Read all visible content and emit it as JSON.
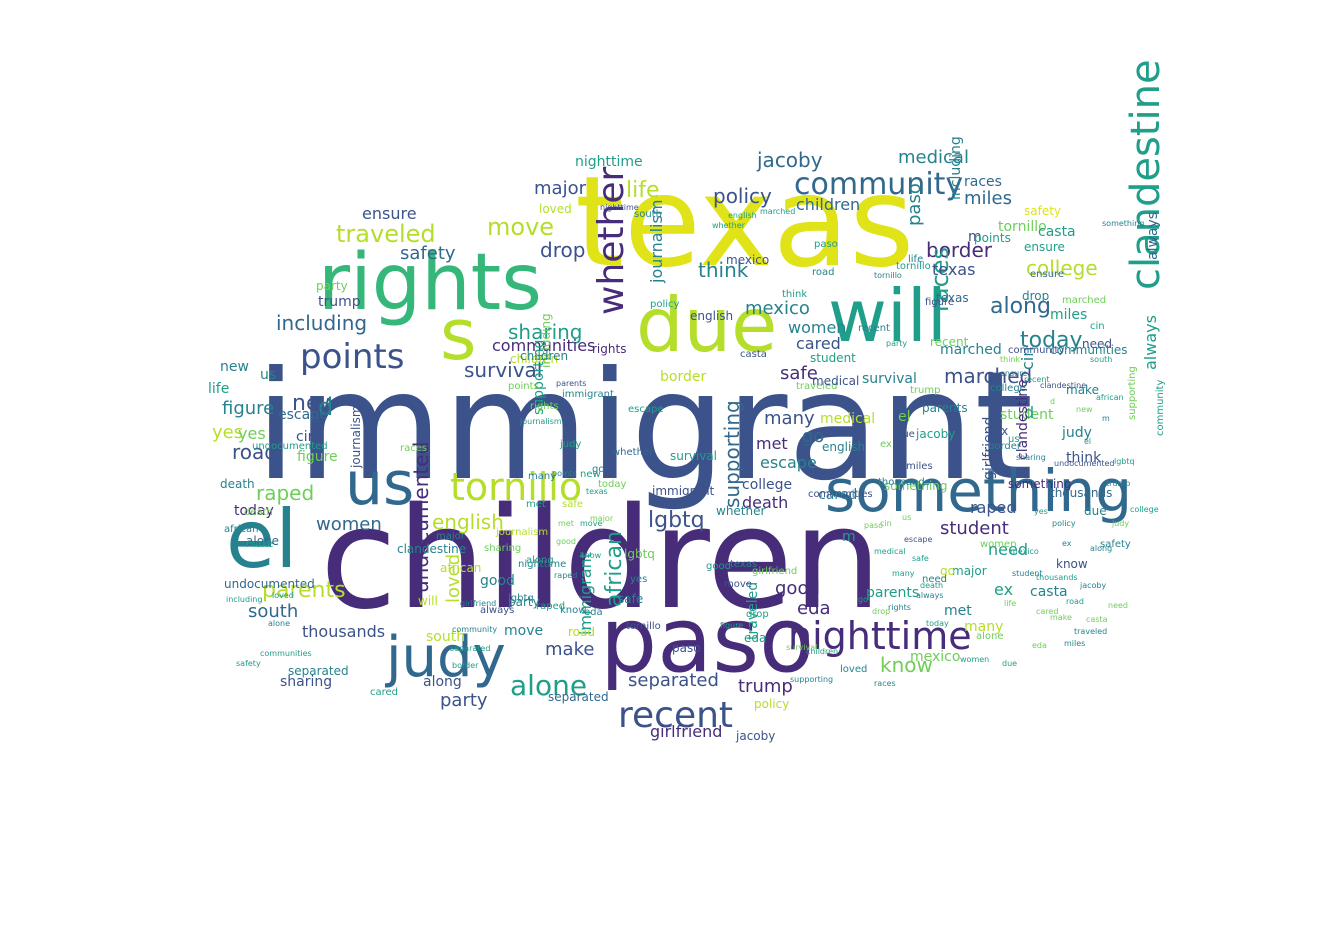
{
  "palette": {
    "dark_purple": "#472c7a",
    "indigo": "#3b528b",
    "blue": "#31688e",
    "teal": "#26828e",
    "green": "#1f9e89",
    "light_green": "#35b779",
    "lime": "#6ece58",
    "yellow_green": "#b5de2b",
    "yellow": "#dfe318",
    "deep_purple": "#440154"
  },
  "words": [
    {
      "text": "immigrant",
      "color": "indigo"
    },
    {
      "text": "children",
      "color": "dark_purple"
    },
    {
      "text": "texas",
      "color": "yellow"
    },
    {
      "text": "rights",
      "color": "light_green"
    },
    {
      "text": "will",
      "color": "green"
    },
    {
      "text": "due",
      "color": "yellow_green"
    },
    {
      "text": "paso",
      "color": "dark_purple"
    },
    {
      "text": "el",
      "color": "teal"
    },
    {
      "text": "something",
      "color": "blue"
    },
    {
      "text": "us",
      "color": "blue"
    },
    {
      "text": "judy",
      "color": "blue"
    },
    {
      "text": "tornillo",
      "color": "yellow_green"
    },
    {
      "text": "nighttime",
      "color": "dark_purple"
    },
    {
      "text": "clandestine",
      "color": "green"
    },
    {
      "text": "points",
      "color": "indigo"
    },
    {
      "text": "community",
      "color": "blue"
    },
    {
      "text": "recent",
      "color": "indigo"
    },
    {
      "text": "alone",
      "color": "green"
    },
    {
      "text": "traveled",
      "color": "yellow_green"
    },
    {
      "text": "move",
      "color": "yellow_green"
    },
    {
      "text": "including",
      "color": "blue"
    },
    {
      "text": "whether",
      "color": "dark_purple"
    },
    {
      "text": "s",
      "color": "yellow_green"
    },
    {
      "text": "safety",
      "color": "blue"
    },
    {
      "text": "drop",
      "color": "indigo"
    },
    {
      "text": "life",
      "color": "yellow_green"
    },
    {
      "text": "major",
      "color": "indigo"
    },
    {
      "text": "jacoby",
      "color": "blue"
    },
    {
      "text": "medical",
      "color": "teal"
    },
    {
      "text": "policy",
      "color": "indigo"
    },
    {
      "text": "children",
      "color": "blue"
    },
    {
      "text": "miles",
      "color": "blue"
    },
    {
      "text": "border",
      "color": "dark_purple"
    },
    {
      "text": "college",
      "color": "yellow_green"
    },
    {
      "text": "along",
      "color": "blue"
    },
    {
      "text": "today",
      "color": "teal"
    },
    {
      "text": "marched",
      "color": "indigo"
    },
    {
      "text": "races",
      "color": "green"
    },
    {
      "text": "think",
      "color": "teal"
    },
    {
      "text": "mexico",
      "color": "teal"
    },
    {
      "text": "women",
      "color": "teal"
    },
    {
      "text": "cared",
      "color": "indigo"
    },
    {
      "text": "safe",
      "color": "dark_purple"
    },
    {
      "text": "survival",
      "color": "indigo"
    },
    {
      "text": "sharing",
      "color": "green"
    },
    {
      "text": "communities",
      "color": "dark_purple"
    },
    {
      "text": "new",
      "color": "indigo"
    },
    {
      "text": "figure",
      "color": "teal"
    },
    {
      "text": "d",
      "color": "teal"
    },
    {
      "text": "raped",
      "color": "lime"
    },
    {
      "text": "english",
      "color": "yellow_green"
    },
    {
      "text": "lgbtq",
      "color": "indigo"
    },
    {
      "text": "women",
      "color": "blue"
    },
    {
      "text": "yes",
      "color": "yellow_green"
    },
    {
      "text": "road",
      "color": "indigo"
    },
    {
      "text": "parents",
      "color": "yellow_green"
    },
    {
      "text": "south",
      "color": "blue"
    },
    {
      "text": "thousands",
      "color": "indigo"
    },
    {
      "text": "party",
      "color": "indigo"
    },
    {
      "text": "separated",
      "color": "indigo"
    },
    {
      "text": "trump",
      "color": "dark_purple"
    },
    {
      "text": "girlfriend",
      "color": "dark_purple"
    },
    {
      "text": "make",
      "color": "indigo"
    },
    {
      "text": "eda",
      "color": "dark_purple"
    },
    {
      "text": "good",
      "color": "dark_purple"
    },
    {
      "text": "know",
      "color": "lime"
    },
    {
      "text": "escape",
      "color": "teal"
    },
    {
      "text": "death",
      "color": "dark_purple"
    },
    {
      "text": "met",
      "color": "dark_purple"
    },
    {
      "text": "many",
      "color": "indigo"
    },
    {
      "text": "go",
      "color": "blue"
    },
    {
      "text": "student",
      "color": "dark_purple"
    },
    {
      "text": "need",
      "color": "green"
    },
    {
      "text": "ex",
      "color": "green"
    },
    {
      "text": "casta",
      "color": "teal"
    },
    {
      "text": "always",
      "color": "green"
    },
    {
      "text": "supporting",
      "color": "blue"
    },
    {
      "text": "african",
      "color": "green"
    },
    {
      "text": "undocumented",
      "color": "dark_purple"
    },
    {
      "text": "journalism",
      "color": "teal"
    },
    {
      "text": "loved",
      "color": "yellow_green"
    },
    {
      "text": "immigrant",
      "color": "green"
    },
    {
      "text": "cin",
      "color": "teal"
    },
    {
      "text": "ensure",
      "color": "indigo"
    },
    {
      "text": "texas",
      "color": "indigo"
    },
    {
      "text": "paso",
      "color": "teal"
    },
    {
      "text": "tornillo",
      "color": "lime"
    },
    {
      "text": "races",
      "color": "blue"
    },
    {
      "text": "el",
      "color": "lime"
    },
    {
      "text": "girlfriend",
      "color": "indigo"
    },
    {
      "text": "m",
      "color": "indigo"
    },
    {
      "text": "including",
      "color": "teal"
    },
    {
      "text": "loved",
      "color": "yellow_green"
    },
    {
      "text": "always",
      "color": "blue"
    },
    {
      "text": "new",
      "color": "teal"
    },
    {
      "text": "need",
      "color": "indigo"
    },
    {
      "text": "yes",
      "color": "lime"
    },
    {
      "text": "escape",
      "color": "blue"
    },
    {
      "text": "mexico",
      "color": "lime"
    },
    {
      "text": "figure",
      "color": "lime"
    },
    {
      "text": "sharing",
      "color": "indigo"
    },
    {
      "text": "survival",
      "color": "teal"
    },
    {
      "text": "trump",
      "color": "indigo"
    },
    {
      "text": "make",
      "color": "teal"
    },
    {
      "text": "think",
      "color": "indigo"
    },
    {
      "text": "party",
      "color": "lime"
    },
    {
      "text": "policy",
      "color": "yellow_green"
    },
    {
      "text": "jacoby",
      "color": "indigo"
    },
    {
      "text": "communities",
      "color": "teal"
    },
    {
      "text": "road",
      "color": "yellow_green"
    },
    {
      "text": "separated",
      "color": "teal"
    },
    {
      "text": "student",
      "color": "lime"
    },
    {
      "text": "thousands",
      "color": "blue"
    },
    {
      "text": "death",
      "color": "teal"
    },
    {
      "text": "african",
      "color": "yellow_green"
    },
    {
      "text": "undocumented",
      "color": "blue"
    },
    {
      "text": "journalism",
      "color": "indigo"
    },
    {
      "text": "ensure",
      "color": "green"
    },
    {
      "text": "marched",
      "color": "teal"
    },
    {
      "text": "medical",
      "color": "yellow_green"
    },
    {
      "text": "miles",
      "color": "green"
    },
    {
      "text": "safety",
      "color": "yellow"
    },
    {
      "text": "today",
      "color": "dark_purple"
    },
    {
      "text": "along",
      "color": "indigo"
    },
    {
      "text": "casta",
      "color": "green"
    },
    {
      "text": "cared",
      "color": "teal"
    },
    {
      "text": "college",
      "color": "indigo"
    },
    {
      "text": "points",
      "color": "green"
    },
    {
      "text": "parents",
      "color": "green"
    },
    {
      "text": "south",
      "color": "yellow_green"
    },
    {
      "text": "good",
      "color": "teal"
    },
    {
      "text": "know",
      "color": "indigo"
    },
    {
      "text": "eda",
      "color": "green"
    },
    {
      "text": "life",
      "color": "green"
    },
    {
      "text": "major",
      "color": "green"
    },
    {
      "text": "drop",
      "color": "teal"
    },
    {
      "text": "recent",
      "color": "lime"
    },
    {
      "text": "alone",
      "color": "blue"
    },
    {
      "text": "move",
      "color": "teal"
    },
    {
      "text": "us",
      "color": "teal"
    },
    {
      "text": "cin",
      "color": "indigo"
    },
    {
      "text": "go",
      "color": "yellow_green"
    },
    {
      "text": "ex",
      "color": "indigo"
    },
    {
      "text": "d",
      "color": "green"
    },
    {
      "text": "m",
      "color": "green"
    },
    {
      "text": "whether",
      "color": "teal"
    },
    {
      "text": "supporting",
      "color": "green"
    },
    {
      "text": "lgbtq",
      "color": "lime"
    },
    {
      "text": "many",
      "color": "yellow_green"
    },
    {
      "text": "met",
      "color": "teal"
    },
    {
      "text": "raped",
      "color": "indigo"
    },
    {
      "text": "border",
      "color": "yellow_green"
    },
    {
      "text": "english",
      "color": "indigo"
    },
    {
      "text": "rights",
      "color": "dark_purple"
    },
    {
      "text": "judy",
      "color": "teal"
    },
    {
      "text": "nighttime",
      "color": "green"
    },
    {
      "text": "community",
      "color": "indigo"
    },
    {
      "text": "clandestine",
      "color": "dark_purple"
    },
    {
      "text": "traveled",
      "color": "green"
    },
    {
      "text": "due",
      "color": "teal"
    },
    {
      "text": "will",
      "color": "yellow_green"
    },
    {
      "text": "something",
      "color": "lime"
    },
    {
      "text": "texas",
      "color": "blue"
    },
    {
      "text": "paso",
      "color": "indigo"
    },
    {
      "text": "children",
      "color": "yellow_green"
    },
    {
      "text": "immigrant",
      "color": "indigo"
    },
    {
      "text": "tornillo",
      "color": "indigo"
    },
    {
      "text": "safe",
      "color": "teal"
    },
    {
      "text": "separated",
      "color": "blue"
    },
    {
      "text": "nighttime",
      "color": "teal"
    },
    {
      "text": "girlfriend",
      "color": "lime"
    },
    {
      "text": "undocumented",
      "color": "green"
    },
    {
      "text": "thousands",
      "color": "teal"
    },
    {
      "text": "communities",
      "color": "indigo"
    },
    {
      "text": "clandestine",
      "color": "teal"
    },
    {
      "text": "journalism",
      "color": "yellow_green"
    },
    {
      "text": "supporting",
      "color": "lime"
    },
    {
      "text": "something",
      "color": "dark_purple"
    },
    {
      "text": "community",
      "color": "green"
    },
    {
      "text": "including",
      "color": "lime"
    },
    {
      "text": "whether",
      "color": "blue"
    },
    {
      "text": "traveled",
      "color": "lime"
    },
    {
      "text": "marched",
      "color": "lime"
    },
    {
      "text": "medical",
      "color": "indigo"
    },
    {
      "text": "african",
      "color": "teal"
    },
    {
      "text": "english",
      "color": "teal"
    },
    {
      "text": "student",
      "color": "green"
    },
    {
      "text": "parents",
      "color": "teal"
    },
    {
      "text": "sharing",
      "color": "lime"
    },
    {
      "text": "survival",
      "color": "green"
    },
    {
      "text": "tornillo",
      "color": "green"
    },
    {
      "text": "children",
      "color": "teal"
    },
    {
      "text": "escape",
      "color": "green"
    },
    {
      "text": "mexico",
      "color": "indigo"
    },
    {
      "text": "jacoby",
      "color": "green"
    },
    {
      "text": "college",
      "color": "teal"
    },
    {
      "text": "ensure",
      "color": "blue"
    },
    {
      "text": "border",
      "color": "teal"
    },
    {
      "text": "recent",
      "color": "teal"
    },
    {
      "text": "figure",
      "color": "indigo"
    },
    {
      "text": "policy",
      "color": "green"
    },
    {
      "text": "points",
      "color": "lime"
    },
    {
      "text": "always",
      "color": "indigo"
    },
    {
      "text": "rights",
      "color": "lime"
    },
    {
      "text": "raped",
      "color": "green"
    },
    {
      "text": "women",
      "color": "lime"
    },
    {
      "text": "party",
      "color": "teal"
    },
    {
      "text": "trump",
      "color": "lime"
    },
    {
      "text": "alone",
      "color": "lime"
    },
    {
      "text": "death",
      "color": "lime"
    },
    {
      "text": "south",
      "color": "teal"
    },
    {
      "text": "cared",
      "color": "green"
    },
    {
      "text": "today",
      "color": "lime"
    },
    {
      "text": "along",
      "color": "green"
    },
    {
      "text": "major",
      "color": "teal"
    },
    {
      "text": "miles",
      "color": "indigo"
    },
    {
      "text": "lgbtq",
      "color": "teal"
    },
    {
      "text": "texas",
      "color": "teal"
    },
    {
      "text": "races",
      "color": "lime"
    },
    {
      "text": "think",
      "color": "green"
    },
    {
      "text": "casta",
      "color": "indigo"
    },
    {
      "text": "safety",
      "color": "teal"
    },
    {
      "text": "loved",
      "color": "teal"
    },
    {
      "text": "move",
      "color": "indigo"
    },
    {
      "text": "make",
      "color": "green"
    },
    {
      "text": "need",
      "color": "teal"
    },
    {
      "text": "drop",
      "color": "green"
    },
    {
      "text": "judy",
      "color": "green"
    },
    {
      "text": "road",
      "color": "teal"
    },
    {
      "text": "good",
      "color": "green"
    },
    {
      "text": "know",
      "color": "teal"
    },
    {
      "text": "life",
      "color": "teal"
    },
    {
      "text": "many",
      "color": "teal"
    },
    {
      "text": "paso",
      "color": "green"
    },
    {
      "text": "safe",
      "color": "yellow_green"
    },
    {
      "text": "yes",
      "color": "teal"
    },
    {
      "text": "new",
      "color": "green"
    },
    {
      "text": "eda",
      "color": "teal"
    },
    {
      "text": "met",
      "color": "green"
    },
    {
      "text": "due",
      "color": "indigo"
    },
    {
      "text": "us",
      "color": "green"
    },
    {
      "text": "go",
      "color": "teal"
    },
    {
      "text": "el",
      "color": "indigo"
    },
    {
      "text": "ex",
      "color": "lime"
    },
    {
      "text": "cin",
      "color": "green"
    },
    {
      "text": "immigrant",
      "color": "teal"
    },
    {
      "text": "undocumented",
      "color": "indigo"
    },
    {
      "text": "clandestine",
      "color": "indigo"
    },
    {
      "text": "communities",
      "color": "green"
    },
    {
      "text": "something",
      "color": "teal"
    },
    {
      "text": "nighttime",
      "color": "indigo"
    },
    {
      "text": "journalism",
      "color": "green"
    },
    {
      "text": "supporting",
      "color": "teal"
    },
    {
      "text": "separated",
      "color": "green"
    },
    {
      "text": "thousands",
      "color": "green"
    },
    {
      "text": "community",
      "color": "teal"
    },
    {
      "text": "girlfriend",
      "color": "teal"
    },
    {
      "text": "including",
      "color": "green"
    },
    {
      "text": "children",
      "color": "green"
    },
    {
      "text": "traveled",
      "color": "teal"
    },
    {
      "text": "whether",
      "color": "green"
    },
    {
      "text": "tornillo",
      "color": "teal"
    },
    {
      "text": "student",
      "color": "teal"
    },
    {
      "text": "medical",
      "color": "green"
    },
    {
      "text": "marched",
      "color": "green"
    },
    {
      "text": "english",
      "color": "green"
    },
    {
      "text": "african",
      "color": "green"
    },
    {
      "text": "sharing",
      "color": "teal"
    },
    {
      "text": "parents",
      "color": "indigo"
    },
    {
      "text": "college",
      "color": "green"
    },
    {
      "text": "survival",
      "color": "lime"
    },
    {
      "text": "jacoby",
      "color": "teal"
    },
    {
      "text": "mexico",
      "color": "green"
    },
    {
      "text": "escape",
      "color": "indigo"
    },
    {
      "text": "border",
      "color": "green"
    },
    {
      "text": "recent",
      "color": "green"
    },
    {
      "text": "ensure",
      "color": "teal"
    },
    {
      "text": "figure",
      "color": "green"
    },
    {
      "text": "policy",
      "color": "teal"
    },
    {
      "text": "points",
      "color": "teal"
    },
    {
      "text": "always",
      "color": "teal"
    },
    {
      "text": "rights",
      "color": "teal"
    },
    {
      "text": "safety",
      "color": "green"
    },
    {
      "text": "women",
      "color": "green"
    },
    {
      "text": "raped",
      "color": "teal"
    },
    {
      "text": "party",
      "color": "green"
    },
    {
      "text": "trump",
      "color": "teal"
    },
    {
      "text": "alone",
      "color": "teal"
    },
    {
      "text": "death",
      "color": "green"
    },
    {
      "text": "south",
      "color": "green"
    },
    {
      "text": "cared",
      "color": "lime"
    },
    {
      "text": "today",
      "color": "green"
    },
    {
      "text": "along",
      "color": "teal"
    },
    {
      "text": "major",
      "color": "lime"
    },
    {
      "text": "miles",
      "color": "teal"
    },
    {
      "text": "lgbtq",
      "color": "green"
    },
    {
      "text": "texas",
      "color": "green"
    },
    {
      "text": "races",
      "color": "teal"
    },
    {
      "text": "think",
      "color": "lime"
    },
    {
      "text": "casta",
      "color": "lime"
    },
    {
      "text": "loved",
      "color": "green"
    },
    {
      "text": "move",
      "color": "green"
    },
    {
      "text": "make",
      "color": "lime"
    },
    {
      "text": "need",
      "color": "lime"
    },
    {
      "text": "drop",
      "color": "lime"
    },
    {
      "text": "judy",
      "color": "lime"
    },
    {
      "text": "road",
      "color": "green"
    },
    {
      "text": "good",
      "color": "lime"
    },
    {
      "text": "know",
      "color": "green"
    },
    {
      "text": "life",
      "color": "lime"
    },
    {
      "text": "many",
      "color": "green"
    },
    {
      "text": "paso",
      "color": "lime"
    },
    {
      "text": "safe",
      "color": "green"
    },
    {
      "text": "yes",
      "color": "green"
    },
    {
      "text": "new",
      "color": "lime"
    },
    {
      "text": "eda",
      "color": "lime"
    },
    {
      "text": "met",
      "color": "lime"
    },
    {
      "text": "due",
      "color": "green"
    },
    {
      "text": "us",
      "color": "lime"
    },
    {
      "text": "go",
      "color": "green"
    },
    {
      "text": "el",
      "color": "green"
    },
    {
      "text": "ex",
      "color": "teal"
    },
    {
      "text": "cin",
      "color": "lime"
    },
    {
      "text": "m",
      "color": "teal"
    },
    {
      "text": "d",
      "color": "lime"
    }
  ]
}
